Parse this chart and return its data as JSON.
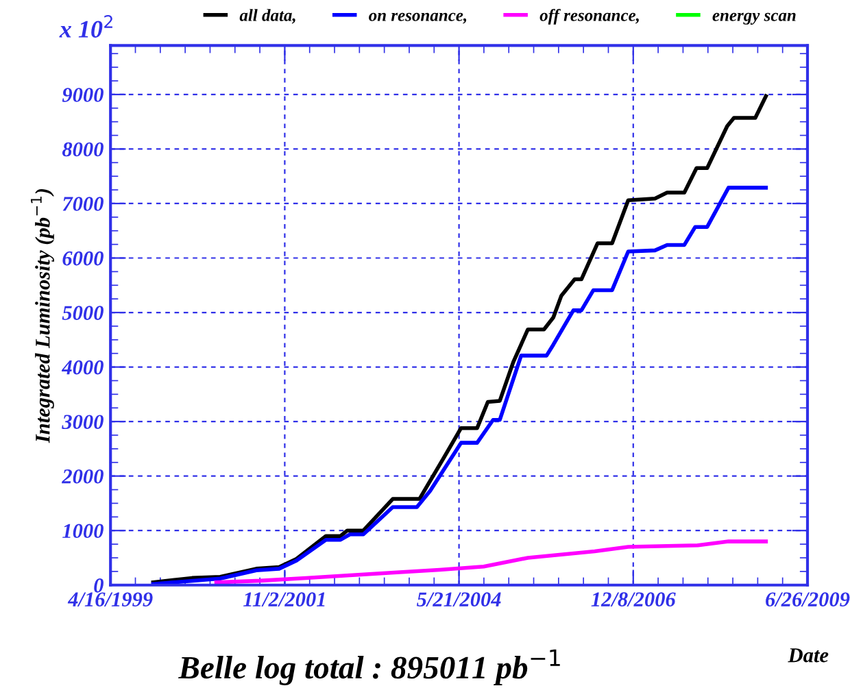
{
  "chart_data": {
    "type": "line",
    "ylabel": "Integrated Luminosity (pb$^{−1}$)",
    "xlabel": "Date",
    "annotations": [
      "x 10$^{2}$",
      "Belle log total : 895011 pb$^{−1}$"
    ],
    "series": [
      {
        "name": "all data,",
        "color": "#000000",
        "x": [
          "1999-11-30",
          "2000-06-25",
          "2000-11-22",
          "2001-06-03",
          "2001-10-03",
          "2002-01-04",
          "2002-06-10",
          "2002-08-27",
          "2002-10-02",
          "2002-12-27",
          "2003-06-02",
          "2003-10-23",
          "2003-12-05",
          "2004-02-29",
          "2004-06-01",
          "2004-08-26",
          "2004-10-22",
          "2004-12-25",
          "2005-03-07",
          "2005-05-24",
          "2005-08-18",
          "2005-10-07",
          "2005-11-19",
          "2006-01-29",
          "2006-03-06",
          "2006-05-31",
          "2006-08-17",
          "2006-11-11",
          "2007-04-03",
          "2007-06-07",
          "2007-09-07",
          "2007-11-11",
          "2008-01-07",
          "2008-04-23",
          "2008-05-29",
          "2008-09-20",
          "2008-11-16"
        ],
        "values": [
          50,
          130,
          150,
          300,
          330,
          480,
          900,
          900,
          1000,
          1000,
          1580,
          1580,
          1830,
          2330,
          2880,
          2880,
          3360,
          3380,
          4090,
          4690,
          4690,
          4910,
          5310,
          5610,
          5610,
          6270,
          6270,
          7060,
          7090,
          7200,
          7200,
          7650,
          7650,
          8420,
          8570,
          8570,
          8970
        ]
      },
      {
        "name": "on resonance,",
        "color": "#0000ff",
        "x": [
          "1999-11-30",
          "2000-11-22",
          "2001-06-03",
          "2001-10-03",
          "2002-01-04",
          "2002-06-10",
          "2002-08-27",
          "2002-10-16",
          "2002-12-27",
          "2003-06-02",
          "2003-10-09",
          "2003-12-19",
          "2004-06-01",
          "2004-08-26",
          "2004-11-19",
          "2004-12-25",
          "2005-04-18",
          "2005-09-01",
          "2005-10-07",
          "2006-01-22",
          "2006-03-06",
          "2006-05-09",
          "2006-08-17",
          "2006-11-11",
          "2007-04-03",
          "2007-06-07",
          "2007-09-07",
          "2007-11-04",
          "2008-01-07",
          "2008-04-30",
          "2008-11-16"
        ],
        "values": [
          20,
          120,
          270,
          300,
          450,
          830,
          830,
          930,
          930,
          1430,
          1430,
          1730,
          2610,
          2610,
          3030,
          3030,
          4210,
          4210,
          4410,
          5040,
          5040,
          5410,
          5410,
          6120,
          6140,
          6240,
          6240,
          6570,
          6570,
          7290,
          7290
        ]
      },
      {
        "name": "off resonance,",
        "color": "#ff00ff",
        "x": [
          "2000-11-01",
          "2001-06-25",
          "2002-02-23",
          "2002-10-16",
          "2003-06-09",
          "2004-02-07",
          "2004-09-30",
          "2005-05-24",
          "2006-05-16",
          "2006-11-11",
          "2007-11-18",
          "2008-04-30",
          "2008-11-16"
        ],
        "values": [
          50,
          80,
          130,
          180,
          230,
          280,
          340,
          500,
          620,
          700,
          730,
          800,
          800
        ]
      },
      {
        "name": "energy scan",
        "color": "#00ff00"
      }
    ],
    "xlim": [
      "1999-04-16",
      "2009-06-26"
    ],
    "xticks": [
      {
        "value": "1999-04-16",
        "label": "4/16/1999"
      },
      {
        "value": "2001-11-02",
        "label": "11/2/2001"
      },
      {
        "value": "2004-05-21",
        "label": "5/21/2004"
      },
      {
        "value": "2006-12-08",
        "label": "12/8/2006"
      },
      {
        "value": "2009-06-26",
        "label": "6/26/2009"
      }
    ],
    "ylim": [
      0,
      9900
    ],
    "yticks": [
      0,
      1000,
      2000,
      3000,
      4000,
      5000,
      6000,
      7000,
      8000,
      9000
    ],
    "grid": true,
    "legend": "top"
  }
}
